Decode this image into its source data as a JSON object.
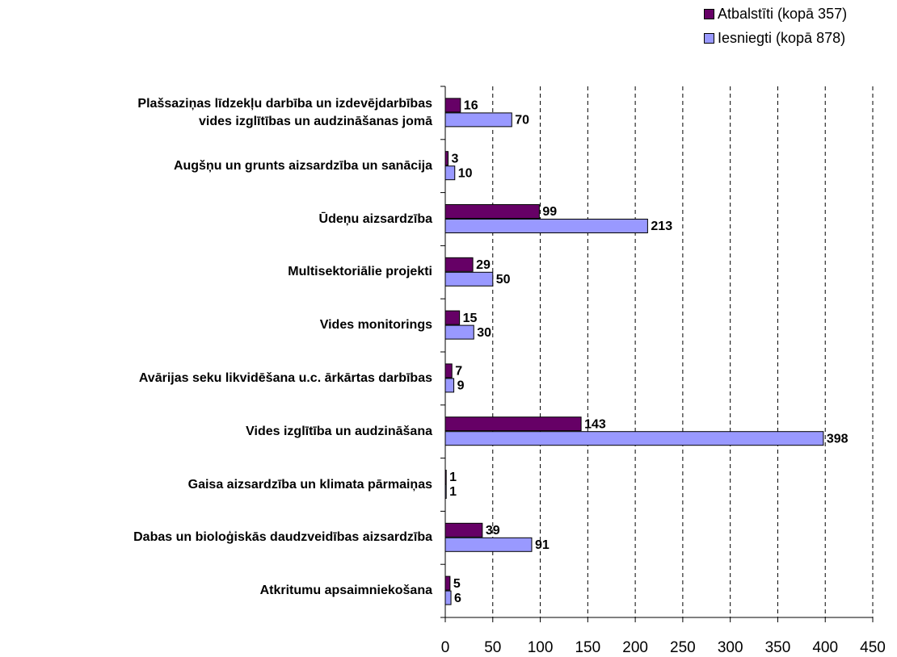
{
  "chart_data": {
    "type": "hbar",
    "categories": [
      "Plašsaziņas līdzekļu darbība un izdevējdarbības\nvides izglītības un audzināšanas jomā",
      "Augšņu un grunts aizsardzība un sanācija",
      "Ūdeņu aizsardzība",
      "Multisektoriālie projekti",
      "Vides monitorings",
      "Avārijas seku likvidēšana u.c. ārkārtas darbības",
      "Vides izglītība un audzināšana",
      "Gaisa aizsardzība un klimata pārmaiņas",
      "Dabas un bioloģiskās daudzveidības aizsardzība",
      "Atkritumu apsaimniekošana"
    ],
    "series": [
      {
        "name": "Atbalstīti (kopā 357)",
        "color": "#660066",
        "values": [
          16,
          3,
          99,
          29,
          15,
          7,
          143,
          1,
          39,
          5
        ]
      },
      {
        "name": "Iesniegti (kopā 878)",
        "color": "#9999ff",
        "values": [
          70,
          10,
          213,
          50,
          30,
          9,
          398,
          1,
          91,
          6
        ]
      }
    ],
    "xlim": [
      0,
      450
    ],
    "xticks": [
      0,
      50,
      100,
      150,
      200,
      250,
      300,
      350,
      400,
      450
    ],
    "grid": true,
    "legend": "top-right"
  }
}
